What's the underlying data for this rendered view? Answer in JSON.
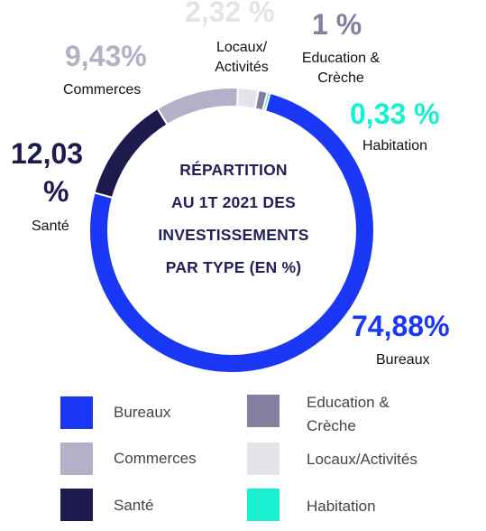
{
  "chart_data": {
    "type": "donut",
    "title": "RÉPARTITION AU 1T 2021 DES INVESTISSEMENTS PAR TYPE (EN %)",
    "slices": [
      {
        "name": "Bureaux",
        "value": 74.88,
        "label": "74,88%",
        "color": "#1a37f5"
      },
      {
        "name": "Santé",
        "value": 12.03,
        "label": "12,03 %",
        "color": "#1d1a4e"
      },
      {
        "name": "Commerces",
        "value": 9.43,
        "label": "9,43%",
        "color": "#b2b1c8"
      },
      {
        "name": "Locaux/Activités",
        "value": 2.32,
        "label": "2,32 %",
        "color": "#e3e3ea"
      },
      {
        "name": "Education & Crèche",
        "value": 1,
        "label": "1 %",
        "color": "#837fa0"
      },
      {
        "name": "Habitation",
        "value": 0.33,
        "label": "0,33 %",
        "color": "#19f0d2"
      }
    ],
    "slice_labels": {
      "bureaux": {
        "pct": "74,88%",
        "name": "Bureaux"
      },
      "sante": {
        "pct_line1": "12,03",
        "pct_line2": "%",
        "name": "Santé"
      },
      "commerces": {
        "pct": "9,43%",
        "name": "Commerces"
      },
      "locaux": {
        "pct": "2,32 %",
        "name_line1": "Locaux/",
        "name_line2": "Activités"
      },
      "education": {
        "pct": "1 %",
        "name_line1": "Education &",
        "name_line2": "Crèche"
      },
      "habitation": {
        "pct": "0,33 %",
        "name": "Habitation"
      }
    },
    "legend": [
      {
        "line1": "Bureaux",
        "line2": ""
      },
      {
        "line1": "Education &",
        "line2": "Crèche"
      },
      {
        "line1": "Commerces",
        "line2": ""
      },
      {
        "line1": "Locaux/Activités",
        "line2": ""
      },
      {
        "line1": "Santé",
        "line2": ""
      },
      {
        "line1": "Habitation",
        "line2": ""
      }
    ]
  },
  "center_title": {
    "line1": "RÉPARTITION",
    "line2": "AU 1T 2021 DES",
    "line3": "INVESTISSEMENTS",
    "line4": "PAR TYPE (EN %)"
  }
}
